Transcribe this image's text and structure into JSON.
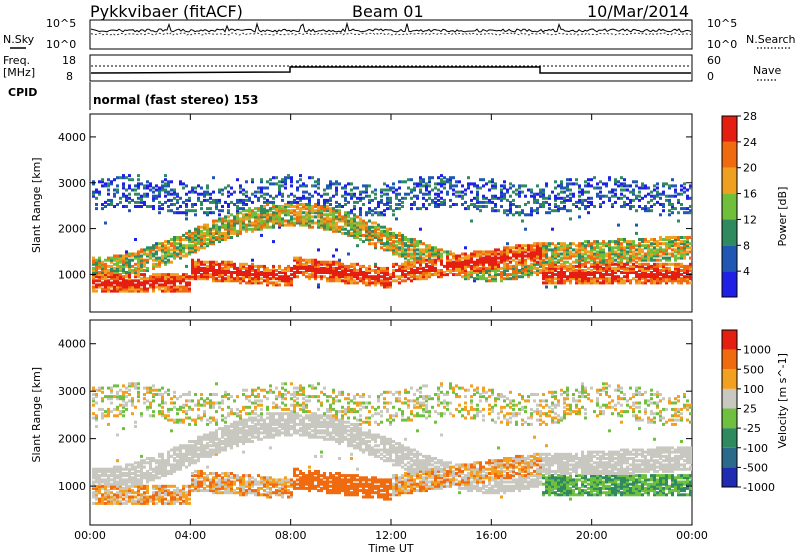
{
  "header": {
    "station": "Pykkvibaer (fitACF)",
    "beam": "Beam 01",
    "date": "10/Mar/2014"
  },
  "side_labels": {
    "noise_sky": "N.Sky",
    "noise_search": "N.Search",
    "freq_line1": "Freq.",
    "freq_line2": "[MHz]",
    "nave": "Nave",
    "cpid": "CPID",
    "cpid_value": "normal (fast stereo) 153"
  },
  "small_axes": {
    "noise_left_ticks": [
      "10^5",
      "10^0"
    ],
    "noise_right_ticks": [
      "10^5",
      "10^0"
    ],
    "freq_ticks": [
      "18",
      "8"
    ],
    "nave_ticks": [
      "60",
      "0"
    ]
  },
  "chart_data": [
    {
      "type": "heatmap",
      "title": "",
      "ylabel": "Slant Range [km]",
      "xlabel": "Time UT",
      "ylim": [
        180,
        4500
      ],
      "yticks": [
        "1000",
        "2000",
        "3000",
        "4000"
      ],
      "xticks": [
        "00:00",
        "04:00",
        "08:00",
        "12:00",
        "16:00",
        "20:00",
        "00:00"
      ],
      "colorbar": {
        "label": "Power [dB]",
        "ticks": [
          "4",
          "8",
          "12",
          "16",
          "20",
          "24",
          "28"
        ],
        "colors": [
          "#1f1fe6",
          "#1f57b3",
          "#2f8a5f",
          "#6fbf3a",
          "#f0a020",
          "#f06a10",
          "#e41e10"
        ]
      }
    },
    {
      "type": "heatmap",
      "title": "",
      "ylabel": "Slant Range [km]",
      "xlabel": "Time UT",
      "ylim": [
        180,
        4500
      ],
      "yticks": [
        "1000",
        "2000",
        "3000",
        "4000"
      ],
      "xticks": [
        "00:00",
        "04:00",
        "08:00",
        "12:00",
        "16:00",
        "20:00",
        "00:00"
      ],
      "colorbar": {
        "label": "Velocity [m s^-1]",
        "ticks": [
          "1000",
          "500",
          "100",
          "25",
          "-25",
          "-100",
          "-500",
          "-1000"
        ],
        "colors": [
          "#1f2bb3",
          "#2a6a8a",
          "#2f8a5f",
          "#70c040",
          "#c8c8c0",
          "#f2a020",
          "#f06a10",
          "#e41e10"
        ]
      }
    }
  ]
}
